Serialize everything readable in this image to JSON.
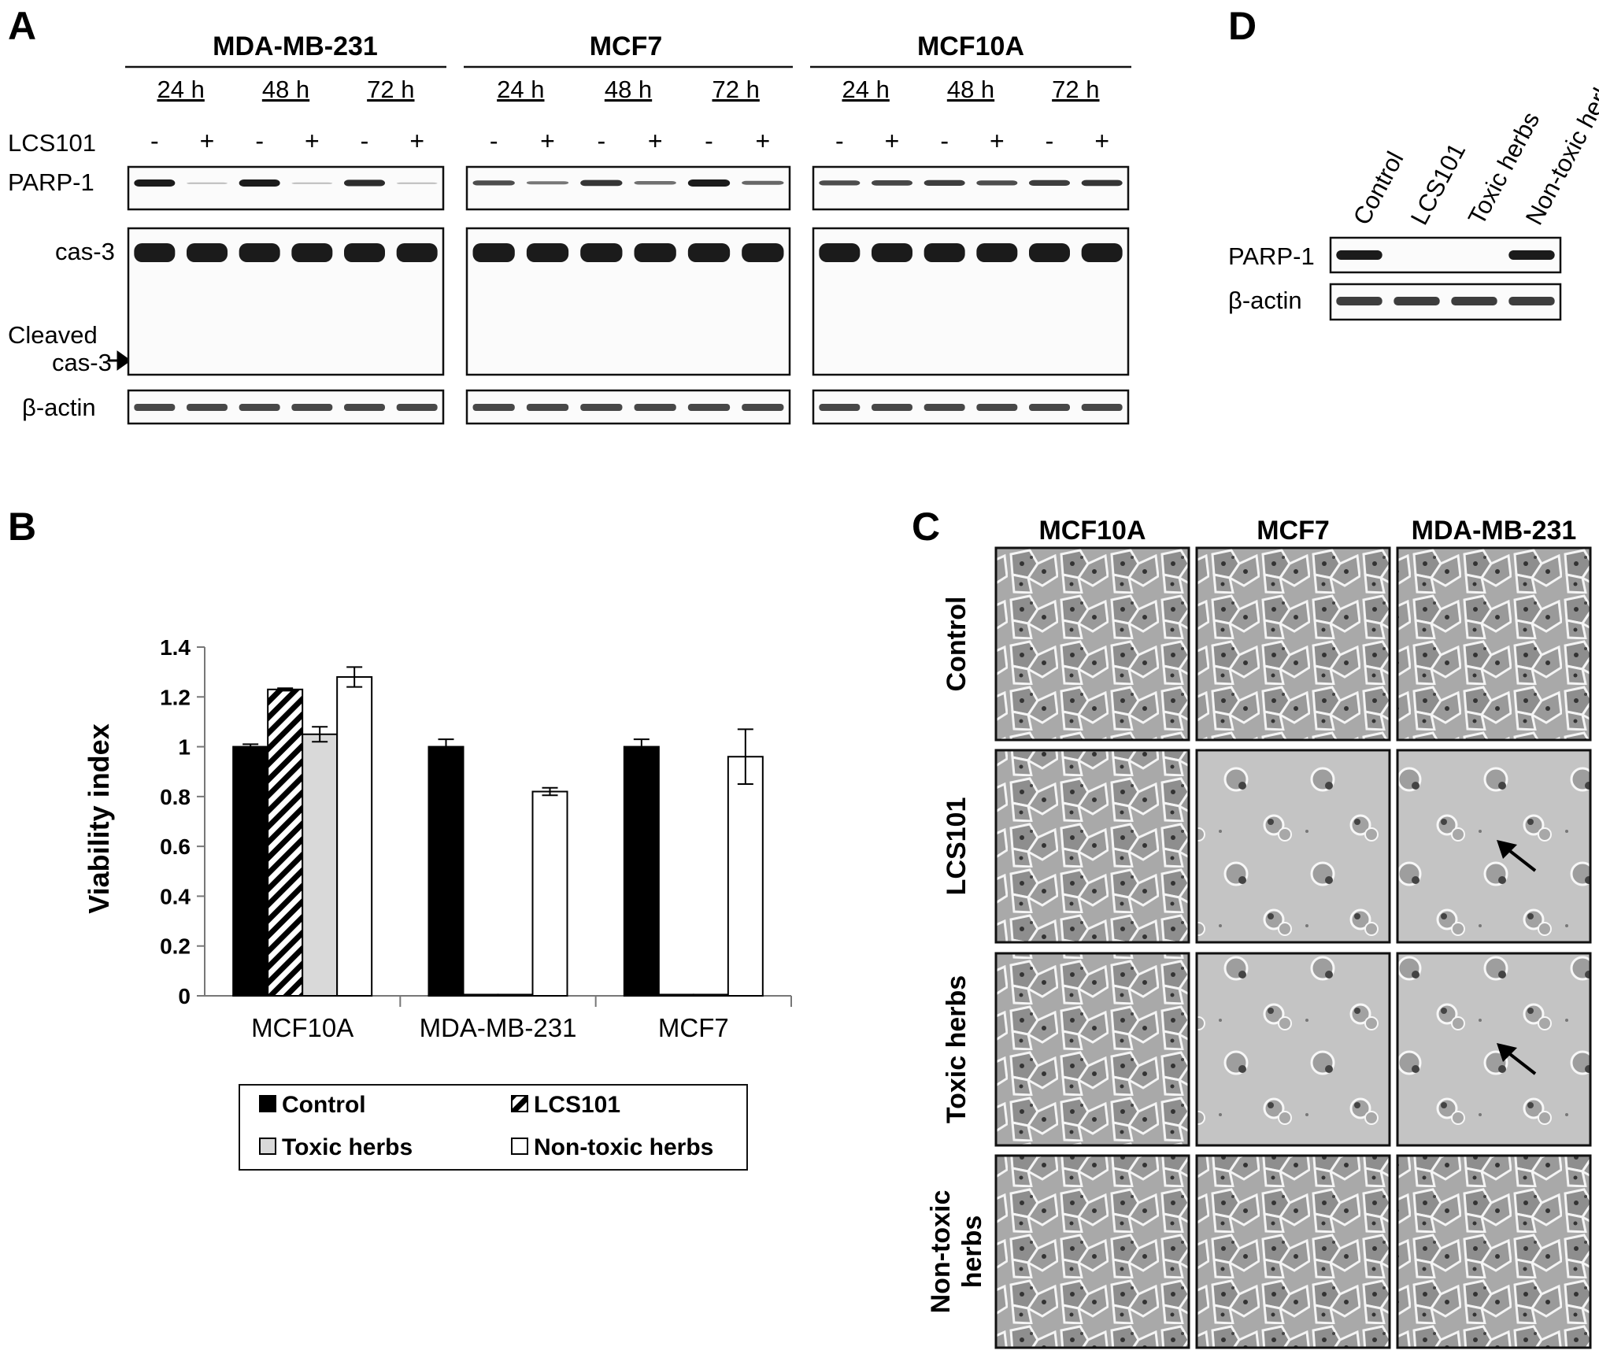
{
  "panel_letters": {
    "a": "A",
    "b": "B",
    "c": "C",
    "d": "D"
  },
  "panel_a": {
    "cell_lines": [
      "MDA-MB-231",
      "MCF7",
      "MCF10A"
    ],
    "timepoints": [
      "24 h",
      "48 h",
      "72 h"
    ],
    "treatment_label": "LCS101",
    "signs": [
      "-",
      "+",
      "-",
      "+",
      "-",
      "+"
    ],
    "row_labels": {
      "parp": "PARP-1",
      "cas3": "cas-3",
      "cleaved_line1": "Cleaved",
      "cleaved_line2": "cas-3",
      "actin": "β-actin"
    }
  },
  "panel_d": {
    "lanes": [
      "Control",
      "LCS101",
      "Toxic herbs",
      "Non-toxic herbs"
    ],
    "row_labels": {
      "parp": "PARP-1",
      "actin": "β-actin"
    }
  },
  "chart_data": {
    "type": "bar",
    "title": "",
    "xlabel": "",
    "ylabel": "Viability index",
    "categories": [
      "MCF10A",
      "MDA-MB-231",
      "MCF7"
    ],
    "ylim": [
      0,
      1.4
    ],
    "yticks": [
      "0",
      "0.2",
      "0.4",
      "0.6",
      "0.8",
      "1",
      "1.2",
      "1.4"
    ],
    "series": [
      {
        "name": "Control",
        "values": [
          1.0,
          1.0,
          1.0
        ],
        "errors": [
          0.01,
          0.03,
          0.03
        ],
        "color": "#000000",
        "pattern": "solid"
      },
      {
        "name": "LCS101",
        "values": [
          1.23,
          0.005,
          0.005
        ],
        "errors": [
          0.005,
          0.0,
          0.0
        ],
        "color": "#000000",
        "pattern": "hatched"
      },
      {
        "name": "Toxic herbs",
        "values": [
          1.05,
          0.005,
          0.005
        ],
        "errors": [
          0.03,
          0.0,
          0.0
        ],
        "color": "#d9d9d9",
        "pattern": "solid"
      },
      {
        "name": "Non-toxic herbs",
        "values": [
          1.28,
          0.82,
          0.96
        ],
        "errors": [
          0.04,
          0.015,
          0.11
        ],
        "color": "#ffffff",
        "pattern": "solid"
      }
    ],
    "legend_placement": "bottom",
    "grid": false
  },
  "panel_c": {
    "columns": [
      "MCF10A",
      "MCF7",
      "MDA-MB-231"
    ],
    "rows": [
      {
        "label_lines": [
          "Control"
        ]
      },
      {
        "label_lines": [
          "LCS101"
        ]
      },
      {
        "label_lines": [
          "Toxic herbs"
        ]
      },
      {
        "label_lines": [
          "Non-toxic",
          "herbs"
        ]
      }
    ],
    "images": [
      [
        "dense-cells",
        "dense-cells",
        "dense-cells"
      ],
      [
        "dense-cells",
        "sparse-dead-cells",
        "sparse-dead-cells-arrow"
      ],
      [
        "dense-cells",
        "sparse-dead-cells",
        "sparse-dead-cells-arrow"
      ],
      [
        "dense-cells",
        "dense-cells",
        "dense-cells"
      ]
    ]
  }
}
